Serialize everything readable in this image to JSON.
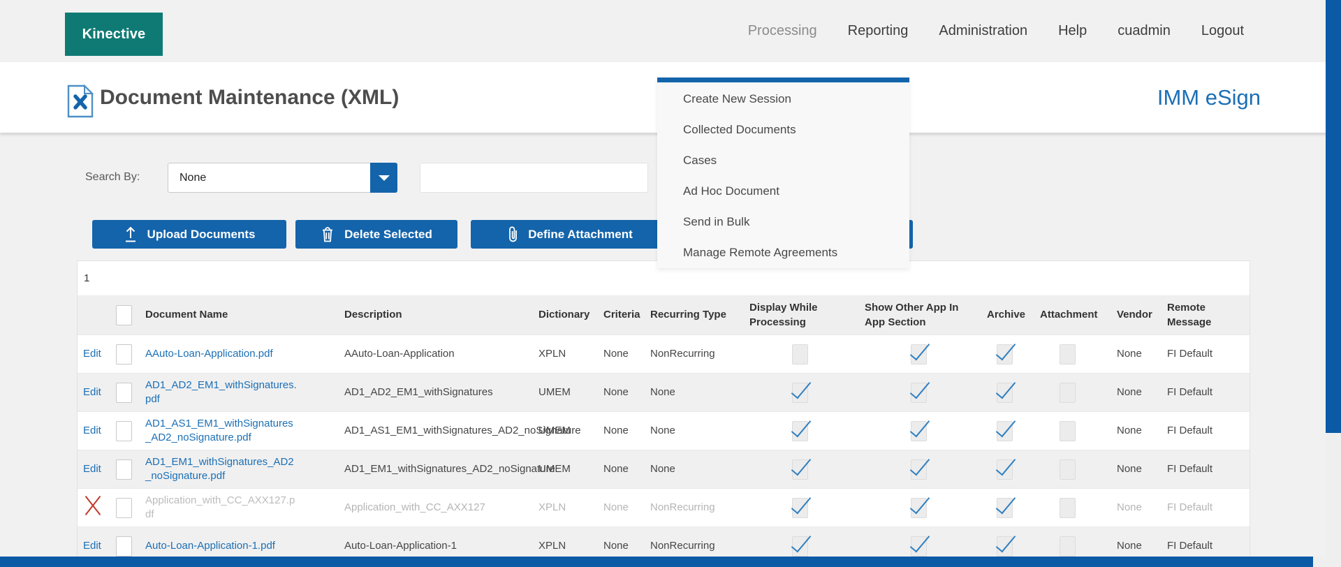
{
  "brand": {
    "logo_text": "Kinective",
    "product_name": "IMM eSign"
  },
  "colors": {
    "accent_blue": "#1464ab",
    "link_blue": "#1b6fb5",
    "scrollbar_blue": "#0b5aa6",
    "check_blue": "#2e7fc1",
    "logo_teal": "#0f7a74",
    "red_x": "#c0392b"
  },
  "nav": {
    "items": [
      {
        "label": "Processing",
        "active": true
      },
      {
        "label": "Reporting",
        "active": false
      },
      {
        "label": "Administration",
        "active": false
      },
      {
        "label": "Help",
        "active": false
      },
      {
        "label": "cuadmin",
        "active": false
      },
      {
        "label": "Logout",
        "active": false
      }
    ]
  },
  "processing_menu": {
    "items": [
      "Create New Session",
      "Collected Documents",
      "Cases",
      "Ad Hoc Document",
      "Send in Bulk",
      "Manage Remote Agreements"
    ]
  },
  "page": {
    "title": "Document Maintenance (XML)"
  },
  "search": {
    "label": "Search By:",
    "selected_option": "None",
    "input_value": ""
  },
  "toolbar": {
    "buttons": [
      {
        "label": "Upload Documents",
        "icon": "upload-icon"
      },
      {
        "label": "Delete Selected",
        "icon": "trash-icon"
      },
      {
        "label": "Define Attachment",
        "icon": "paperclip-icon"
      }
    ],
    "hidden_button": {
      "label": ""
    }
  },
  "pagination": {
    "current_page": "1"
  },
  "table": {
    "headers": [
      "",
      "",
      "Document Name",
      "Description",
      "Dictionary",
      "Criteria",
      "Recurring Type",
      "Display While Processing",
      "Show Other App In App Section",
      "Archive",
      "Attachment",
      "Vendor",
      "Remote Message"
    ],
    "select_all_checkbox": {
      "checked": false
    },
    "rows": [
      {
        "action": "Edit",
        "selected": false,
        "name": "AAuto-Loan-Application.pdf",
        "description": "AAuto-Loan-Application",
        "dictionary": "XPLN",
        "criteria": "None",
        "recurring_type": "NonRecurring",
        "display_while_processing": false,
        "show_other_app_in_app_section": true,
        "archive": true,
        "attachment": false,
        "vendor": "None",
        "remote_message": "FI Default",
        "disabled": false
      },
      {
        "action": "Edit",
        "selected": false,
        "name": "AD1_AD2_EM1_withSignatures.pdf",
        "description": "AD1_AD2_EM1_withSignatures",
        "dictionary": "UMEM",
        "criteria": "None",
        "recurring_type": "None",
        "display_while_processing": true,
        "show_other_app_in_app_section": true,
        "archive": true,
        "attachment": false,
        "vendor": "None",
        "remote_message": "FI Default",
        "disabled": false
      },
      {
        "action": "Edit",
        "selected": false,
        "name": "AD1_AS1_EM1_withSignatures_AD2_noSignature.pdf",
        "description": "AD1_AS1_EM1_withSignatures_AD2_noSignature",
        "dictionary": "UMEM",
        "criteria": "None",
        "recurring_type": "None",
        "display_while_processing": true,
        "show_other_app_in_app_section": true,
        "archive": true,
        "attachment": false,
        "vendor": "None",
        "remote_message": "FI Default",
        "disabled": false
      },
      {
        "action": "Edit",
        "selected": false,
        "name": "AD1_EM1_withSignatures_AD2_noSignature.pdf",
        "description": "AD1_EM1_withSignatures_AD2_noSignature",
        "dictionary": "UMEM",
        "criteria": "None",
        "recurring_type": "None",
        "display_while_processing": true,
        "show_other_app_in_app_section": true,
        "archive": true,
        "attachment": false,
        "vendor": "None",
        "remote_message": "FI Default",
        "disabled": false
      },
      {
        "action": "delete",
        "selected": false,
        "name": "Application_with_CC_AXX127.pdf",
        "description": "Application_with_CC_AXX127",
        "dictionary": "XPLN",
        "criteria": "None",
        "recurring_type": "NonRecurring",
        "display_while_processing": true,
        "show_other_app_in_app_section": true,
        "archive": true,
        "attachment": false,
        "vendor": "None",
        "remote_message": "FI Default",
        "disabled": true
      },
      {
        "action": "Edit",
        "selected": false,
        "name": "Auto-Loan-Application-1.pdf",
        "description": "Auto-Loan-Application-1",
        "dictionary": "XPLN",
        "criteria": "None",
        "recurring_type": "NonRecurring",
        "display_while_processing": true,
        "show_other_app_in_app_section": true,
        "archive": true,
        "attachment": false,
        "vendor": "None",
        "remote_message": "FI Default",
        "disabled": false
      }
    ]
  }
}
